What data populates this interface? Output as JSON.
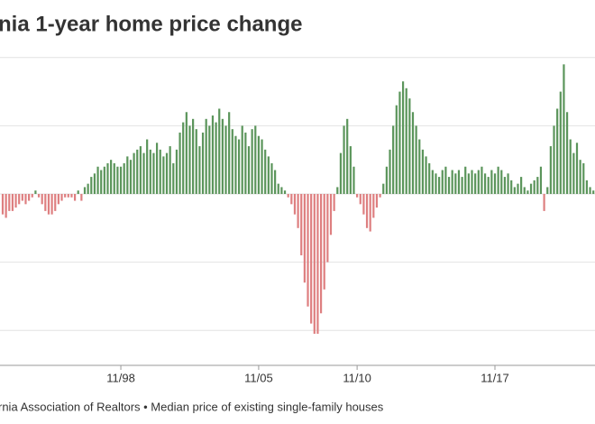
{
  "chart_data": {
    "type": "bar",
    "title": "nia 1-year home price change",
    "source": "rnia Association of Realtors • Median price of existing single-family houses",
    "categories": [
      null,
      null,
      null,
      null,
      null,
      null,
      null,
      null,
      null,
      null,
      null,
      null,
      null,
      null,
      null,
      null,
      null,
      null,
      null,
      null,
      null,
      null,
      null,
      null,
      null,
      null,
      null,
      null,
      null,
      null,
      null,
      null,
      null,
      null,
      null,
      null,
      "11/98",
      null,
      null,
      null,
      null,
      null,
      null,
      null,
      null,
      null,
      null,
      null,
      null,
      null,
      null,
      null,
      null,
      null,
      null,
      null,
      null,
      null,
      null,
      null,
      null,
      null,
      null,
      null,
      null,
      null,
      null,
      null,
      null,
      null,
      null,
      null,
      null,
      null,
      null,
      null,
      null,
      null,
      "11/05",
      null,
      null,
      null,
      null,
      null,
      null,
      null,
      null,
      null,
      null,
      null,
      null,
      null,
      null,
      null,
      null,
      null,
      null,
      null,
      null,
      null,
      null,
      null,
      null,
      null,
      null,
      null,
      null,
      null,
      "11/10",
      null,
      null,
      null,
      null,
      null,
      null,
      null,
      null,
      null,
      null,
      null,
      null,
      null,
      null,
      null,
      null,
      null,
      null,
      null,
      null,
      null,
      null,
      null,
      null,
      null,
      null,
      null,
      null,
      null,
      null,
      null,
      null,
      null,
      null,
      null,
      null,
      null,
      null,
      null,
      null,
      null,
      "11/17",
      null,
      null,
      null,
      null,
      null,
      null,
      null,
      null,
      null,
      null,
      null,
      null,
      null,
      null,
      null,
      null,
      null,
      null,
      null,
      null,
      null,
      null,
      null,
      null,
      null,
      null,
      null,
      null,
      null,
      null
    ],
    "values": [
      -6,
      -7,
      -5,
      -5,
      -4,
      -3,
      -2,
      -3,
      -2,
      -1,
      1,
      -1,
      -3,
      -5,
      -6,
      -6,
      -5,
      -3,
      -2,
      -1,
      -1,
      -1,
      -2,
      1,
      -2,
      2,
      3,
      5,
      6,
      8,
      7,
      8,
      9,
      10,
      9,
      8,
      8,
      9,
      11,
      10,
      12,
      13,
      14,
      12,
      16,
      13,
      12,
      15,
      13,
      11,
      12,
      14,
      9,
      13,
      18,
      21,
      24,
      20,
      22,
      19,
      14,
      18,
      22,
      20,
      23,
      21,
      25,
      22,
      20,
      24,
      19,
      17,
      16,
      20,
      18,
      14,
      19,
      20,
      17,
      16,
      13,
      11,
      9,
      7,
      3,
      2,
      1,
      -1,
      -3,
      -6,
      -10,
      -18,
      -26,
      -33,
      -38,
      -41,
      -41,
      -35,
      -28,
      -20,
      -12,
      -5,
      2,
      12,
      20,
      22,
      14,
      8,
      -1,
      -3,
      -6,
      -10,
      -11,
      -7,
      -4,
      -1,
      3,
      8,
      13,
      20,
      26,
      30,
      33,
      31,
      28,
      24,
      20,
      16,
      13,
      11,
      9,
      7,
      6,
      5,
      7,
      8,
      5,
      7,
      6,
      7,
      5,
      8,
      6,
      7,
      6,
      7,
      8,
      6,
      5,
      7,
      6,
      8,
      7,
      5,
      6,
      4,
      2,
      3,
      5,
      2,
      1,
      3,
      4,
      5,
      8,
      -5,
      2,
      14,
      20,
      25,
      30,
      38,
      24,
      16,
      12,
      15,
      10,
      9,
      4,
      2,
      1
    ],
    "positive_color": "#5b955b",
    "negative_color": "#de7f80",
    "ylim": [
      -50,
      41
    ],
    "yticks": [
      -40,
      -20,
      0,
      20,
      40
    ],
    "grid": true
  }
}
